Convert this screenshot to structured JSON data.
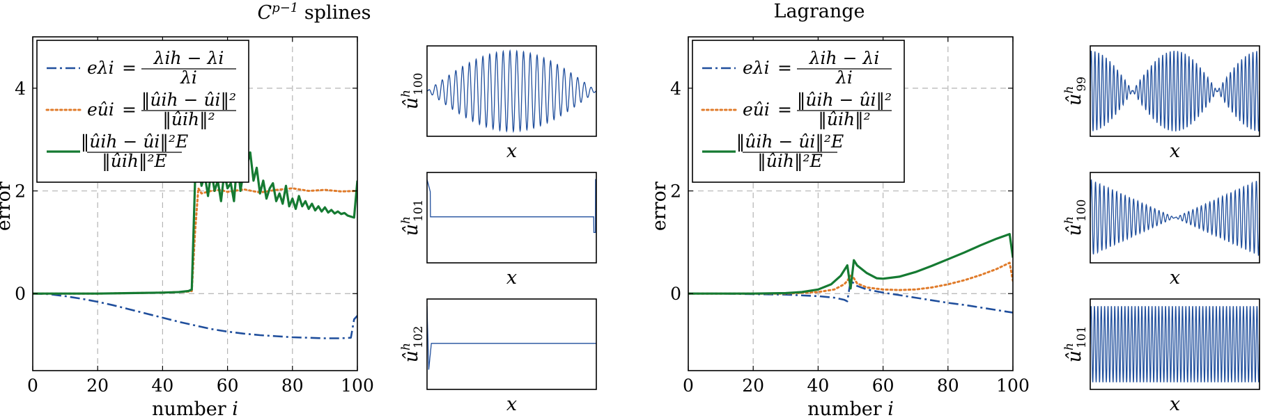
{
  "colors": {
    "blue": "#1f4e9c",
    "orange": "#e07b2a",
    "green": "#157a32",
    "grid": "#b4b4b4"
  },
  "panels": [
    {
      "title": "C^{p−1} splines",
      "title_base": "C",
      "title_sup": "p−1",
      "title_rest": " splines"
    },
    {
      "title": "Lagrange"
    }
  ],
  "legend": [
    {
      "symbol": "eλi",
      "equals": "=",
      "num": "λih − λi",
      "den": "λi"
    },
    {
      "symbol": "eûi",
      "equals": "=",
      "num": "‖ûih − ûi‖²",
      "den": "‖ûih‖²"
    },
    {
      "symbol": "",
      "equals": "",
      "num": "‖ûih − ûi‖²E",
      "den": "‖ûih‖²E"
    }
  ],
  "side_plots": {
    "left": [
      {
        "ylabel": "û^h_100",
        "xlabel": "x"
      },
      {
        "ylabel": "û^h_101",
        "xlabel": "x"
      },
      {
        "ylabel": "û^h_102",
        "xlabel": "x"
      }
    ],
    "right": [
      {
        "ylabel": "û^h_99",
        "xlabel": "x"
      },
      {
        "ylabel": "û^h_100",
        "xlabel": "x"
      },
      {
        "ylabel": "û^h_101",
        "xlabel": "x"
      }
    ]
  },
  "chart_data": [
    {
      "type": "line",
      "title": "C^{p−1} splines",
      "xlabel": "number i",
      "ylabel": "error",
      "xlim": [
        0,
        100
      ],
      "ylim": [
        -1.5,
        5
      ],
      "xticks": [
        0,
        20,
        40,
        60,
        80,
        100
      ],
      "yticks": [
        0,
        2,
        4
      ],
      "grid": true,
      "legend_position": "top-left",
      "series": [
        {
          "name": "eλi",
          "color": "blue",
          "style": "dashdot",
          "x": [
            0,
            5,
            10,
            15,
            20,
            25,
            30,
            35,
            40,
            45,
            50,
            55,
            60,
            65,
            70,
            75,
            80,
            85,
            90,
            95,
            98,
            99,
            100
          ],
          "y": [
            0,
            -0.01,
            -0.05,
            -0.1,
            -0.16,
            -0.23,
            -0.31,
            -0.39,
            -0.47,
            -0.55,
            -0.62,
            -0.69,
            -0.74,
            -0.78,
            -0.81,
            -0.83,
            -0.85,
            -0.86,
            -0.87,
            -0.87,
            -0.86,
            -0.5,
            -0.43
          ]
        },
        {
          "name": "eûi",
          "color": "orange",
          "style": "dotted",
          "x": [
            0,
            10,
            20,
            30,
            40,
            45,
            48,
            49,
            50,
            51,
            52,
            55,
            58,
            60,
            65,
            70,
            75,
            80,
            85,
            90,
            95,
            100
          ],
          "y": [
            0,
            0,
            0,
            0.01,
            0.02,
            0.03,
            0.04,
            0.05,
            1.2,
            2.05,
            1.95,
            2.0,
            2.02,
            1.98,
            2.03,
            1.97,
            2.02,
            2.05,
            2.0,
            2.02,
            1.99,
            2.0
          ]
        },
        {
          "name": "‖ûih − ûi‖²E / ‖ûih‖²E",
          "color": "green",
          "style": "solid",
          "x": [
            0,
            10,
            20,
            30,
            40,
            45,
            48,
            49,
            50,
            51,
            52,
            53,
            54,
            55,
            56,
            57,
            58,
            59,
            60,
            61,
            62,
            63,
            64,
            65,
            66,
            67,
            68,
            69,
            70,
            71,
            72,
            73,
            74,
            75,
            76,
            77,
            78,
            79,
            80,
            81,
            82,
            83,
            84,
            85,
            86,
            87,
            88,
            89,
            90,
            91,
            92,
            93,
            94,
            95,
            96,
            97,
            98,
            99,
            100
          ],
          "y": [
            0,
            0,
            0,
            0.01,
            0.02,
            0.03,
            0.05,
            0.08,
            2.2,
            2.5,
            2.1,
            2.3,
            1.9,
            2.4,
            2.0,
            2.2,
            1.8,
            2.35,
            2.05,
            2.15,
            1.8,
            2.6,
            2.0,
            2.4,
            2.5,
            2.75,
            2.2,
            2.45,
            1.95,
            2.2,
            1.85,
            2.05,
            2.15,
            1.8,
            1.95,
            1.75,
            2.1,
            1.7,
            1.85,
            1.65,
            1.9,
            1.7,
            1.8,
            1.65,
            1.75,
            1.62,
            1.7,
            1.6,
            1.68,
            1.58,
            1.63,
            1.56,
            1.6,
            1.55,
            1.57,
            1.52,
            1.5,
            1.48,
            2.2
          ]
        }
      ]
    },
    {
      "type": "line",
      "title": "Lagrange",
      "xlabel": "number i",
      "ylabel": "error",
      "xlim": [
        0,
        100
      ],
      "ylim": [
        -1.5,
        5
      ],
      "xticks": [
        0,
        20,
        40,
        60,
        80,
        100
      ],
      "yticks": [
        0,
        2,
        4
      ],
      "grid": true,
      "legend_position": "top-left",
      "series": [
        {
          "name": "eλi",
          "color": "blue",
          "style": "dashdot",
          "x": [
            0,
            10,
            20,
            30,
            40,
            45,
            48,
            49,
            50,
            51,
            52,
            55,
            60,
            65,
            70,
            75,
            80,
            85,
            90,
            95,
            100
          ],
          "y": [
            0,
            0,
            -0.01,
            -0.02,
            -0.05,
            -0.08,
            -0.12,
            -0.15,
            0.25,
            0.2,
            0.15,
            0.08,
            0.02,
            -0.03,
            -0.08,
            -0.13,
            -0.18,
            -0.22,
            -0.27,
            -0.32,
            -0.37
          ]
        },
        {
          "name": "eûi",
          "color": "orange",
          "style": "dotted",
          "x": [
            0,
            10,
            20,
            30,
            40,
            45,
            48,
            49,
            50,
            51,
            52,
            55,
            60,
            65,
            70,
            75,
            80,
            85,
            90,
            95,
            99,
            100
          ],
          "y": [
            0,
            0,
            0,
            0,
            0.03,
            0.08,
            0.18,
            0.25,
            0.35,
            0.3,
            0.2,
            0.12,
            0.08,
            0.07,
            0.08,
            0.12,
            0.18,
            0.26,
            0.36,
            0.48,
            0.6,
            0.25
          ]
        },
        {
          "name": "‖ûih − ûi‖²E / ‖ûih‖²E",
          "color": "green",
          "style": "solid",
          "x": [
            0,
            10,
            20,
            30,
            35,
            40,
            44,
            47,
            49,
            50,
            51,
            52,
            55,
            58,
            60,
            65,
            70,
            75,
            80,
            85,
            90,
            95,
            99,
            100
          ],
          "y": [
            0,
            0,
            0,
            0.01,
            0.03,
            0.08,
            0.18,
            0.35,
            0.55,
            0.1,
            0.65,
            0.55,
            0.4,
            0.3,
            0.29,
            0.33,
            0.42,
            0.54,
            0.67,
            0.8,
            0.94,
            1.07,
            1.16,
            0.7
          ]
        }
      ]
    }
  ]
}
